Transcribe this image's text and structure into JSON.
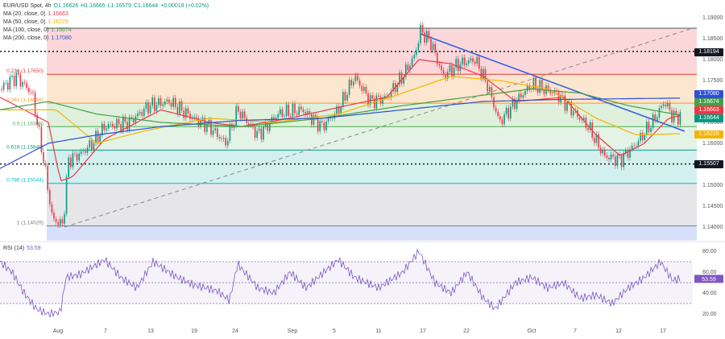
{
  "header": {
    "symbol": "EUR/USD Spot, 4h",
    "open": "O1.16626",
    "high": "H1.16665",
    "low": "L1.16579",
    "close": "C1.16644",
    "change": "+0.00018 (+0.02%)"
  },
  "mas": [
    {
      "label": "MA (20, close, 0)",
      "value": "1.16663",
      "color": "#f23645"
    },
    {
      "label": "MA (50, close, 0)",
      "value": "1.16229",
      "color": "#f5b400"
    },
    {
      "label": "MA (100, close, 0)",
      "value": "1.16674",
      "color": "#43a047"
    },
    {
      "label": "MA (200, close, 0)",
      "value": "1.17080",
      "color": "#2f4fd6"
    }
  ],
  "fib": [
    {
      "label": "0.236 (1.17650)",
      "level": 1.1765,
      "color": "#e53935"
    },
    {
      "label": "0.382 (1.16958)",
      "level": 1.16958,
      "color": "#f59c1a"
    },
    {
      "label": "0.5 (1.16399)",
      "level": 1.16399,
      "color": "#4caf50"
    },
    {
      "label": "0.618 (1.15840)",
      "level": 1.1584,
      "color": "#089981"
    },
    {
      "label": "0.786 (1.15044)",
      "level": 1.15044,
      "color": "#00bcd4"
    },
    {
      "label": "1 (1.14029)",
      "level": 1.14029,
      "color": "#787b86"
    }
  ],
  "price_axis": [
    "1.19000",
    "1.18500",
    "1.18000",
    "1.17500",
    "1.17000",
    "1.16500",
    "1.16000",
    "1.15500",
    "1.15000",
    "1.14500",
    "1.14000"
  ],
  "price_tags": [
    {
      "value": "1.18194",
      "color": "#131722"
    },
    {
      "value": "1.17080",
      "color": "#2f4fd6"
    },
    {
      "value": "1.16674",
      "color": "#43a047"
    },
    {
      "value": "1.16663",
      "color": "#f23645"
    },
    {
      "value": "1.16644",
      "color": "#089981"
    },
    {
      "value": "1.16229",
      "color": "#f5b400"
    },
    {
      "value": "1.15507",
      "color": "#131722"
    }
  ],
  "dates": [
    "Aug",
    "7",
    "13",
    "19",
    "24",
    "Sep",
    "5",
    "11",
    "17",
    "22",
    "Oct",
    "7",
    "12",
    "17"
  ],
  "rsi": {
    "label": "RSI (14)",
    "value": "53.59",
    "axis": [
      "80.00",
      "60.00",
      "40.00",
      "20.00"
    ],
    "color": "#7e57c2"
  }
}
